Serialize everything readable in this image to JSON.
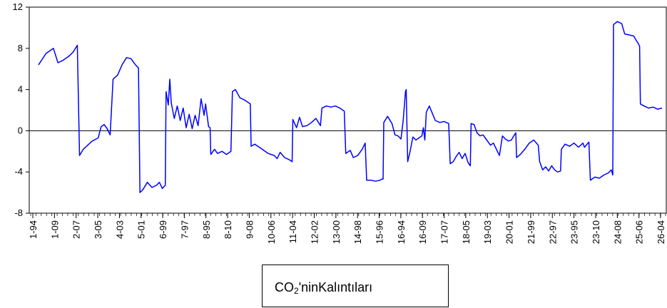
{
  "chart_data": {
    "type": "line",
    "ylim": [
      -8,
      12
    ],
    "yticks": [
      "12",
      "8",
      "4",
      "0",
      "-4",
      "-8"
    ],
    "ytick_values": [
      12,
      8,
      4,
      0,
      -4,
      -8
    ],
    "xticks": [
      "1-94",
      "1-09",
      "2-07",
      "3-05",
      "4-03",
      "5-01",
      "6-99",
      "7-97",
      "8-95",
      "8-10",
      "9-08",
      "10-06",
      "11-04",
      "12-02",
      "13-00",
      "14-98",
      "15-96",
      "16-94",
      "16-09",
      "17-07",
      "18-05",
      "19-03",
      "20-01",
      "21-99",
      "22-97",
      "23-95",
      "23-10",
      "24-08",
      "25-06",
      "26-04"
    ],
    "grid": false,
    "zero_line": true,
    "line_color": "#0000ff",
    "series": [
      {
        "name_prefix": "CO",
        "name_sub": "2",
        "name_suffix": "'ninKalıntıları",
        "points": [
          [
            0,
            6.4
          ],
          [
            0.5,
            7.5
          ],
          [
            1,
            8.0
          ],
          [
            1.3,
            6.6
          ],
          [
            1.6,
            6.8
          ],
          [
            2,
            7.2
          ],
          [
            2.3,
            7.6
          ],
          [
            2.6,
            8.3
          ],
          [
            2.75,
            -2.4
          ],
          [
            3,
            -1.8
          ],
          [
            3.3,
            -1.4
          ],
          [
            3.6,
            -1.0
          ],
          [
            4,
            -0.7
          ],
          [
            4.2,
            0.4
          ],
          [
            4.4,
            0.6
          ],
          [
            4.6,
            0.2
          ],
          [
            4.8,
            -0.4
          ],
          [
            5,
            5.0
          ],
          [
            5.3,
            5.4
          ],
          [
            5.6,
            6.4
          ],
          [
            5.9,
            7.1
          ],
          [
            6.2,
            7.0
          ],
          [
            6.5,
            6.4
          ],
          [
            6.7,
            6.1
          ],
          [
            6.8,
            -6.0
          ],
          [
            7.0,
            -5.7
          ],
          [
            7.3,
            -5.0
          ],
          [
            7.6,
            -5.5
          ],
          [
            7.9,
            -5.3
          ],
          [
            8.1,
            -5.0
          ],
          [
            8.3,
            -5.6
          ],
          [
            8.5,
            -5.3
          ],
          [
            8.55,
            3.8
          ],
          [
            8.7,
            2.5
          ],
          [
            8.8,
            5.0
          ],
          [
            8.9,
            2.7
          ],
          [
            9.1,
            1.2
          ],
          [
            9.3,
            2.4
          ],
          [
            9.5,
            1.0
          ],
          [
            9.7,
            2.2
          ],
          [
            9.9,
            0.3
          ],
          [
            10.1,
            1.6
          ],
          [
            10.3,
            0.2
          ],
          [
            10.5,
            1.5
          ],
          [
            10.7,
            0.5
          ],
          [
            10.9,
            3.1
          ],
          [
            11.1,
            1.5
          ],
          [
            11.2,
            2.6
          ],
          [
            11.4,
            0.4
          ],
          [
            11.5,
            0.3
          ],
          [
            11.55,
            -2.3
          ],
          [
            11.8,
            -1.8
          ],
          [
            12,
            -2.2
          ],
          [
            12.3,
            -2.0
          ],
          [
            12.6,
            -2.3
          ],
          [
            12.9,
            -2.0
          ],
          [
            13.0,
            3.8
          ],
          [
            13.2,
            4.0
          ],
          [
            13.5,
            3.2
          ],
          [
            13.8,
            3.0
          ],
          [
            14.0,
            2.8
          ],
          [
            14.2,
            2.6
          ],
          [
            14.25,
            -1.5
          ],
          [
            14.5,
            -1.3
          ],
          [
            14.8,
            -1.6
          ],
          [
            15.0,
            -1.8
          ],
          [
            15.4,
            -2.2
          ],
          [
            15.8,
            -2.4
          ],
          [
            16.0,
            -2.7
          ],
          [
            16.2,
            -2.1
          ],
          [
            16.5,
            -2.6
          ],
          [
            16.8,
            -2.8
          ],
          [
            17.0,
            -3.0
          ],
          [
            17.05,
            1.1
          ],
          [
            17.3,
            0.3
          ],
          [
            17.5,
            1.3
          ],
          [
            17.7,
            0.4
          ],
          [
            18.0,
            0.5
          ],
          [
            18.3,
            0.8
          ],
          [
            18.6,
            1.2
          ],
          [
            18.9,
            0.5
          ],
          [
            19.0,
            2.2
          ],
          [
            19.3,
            2.4
          ],
          [
            19.6,
            2.3
          ],
          [
            19.9,
            2.4
          ],
          [
            20.2,
            2.2
          ],
          [
            20.5,
            1.9
          ],
          [
            20.6,
            -2.2
          ],
          [
            20.9,
            -1.9
          ],
          [
            21.1,
            -2.6
          ],
          [
            21.4,
            -2.4
          ],
          [
            21.7,
            -1.8
          ],
          [
            21.9,
            -1.2
          ],
          [
            22.0,
            -4.8
          ],
          [
            22.3,
            -4.8
          ],
          [
            22.6,
            -4.9
          ],
          [
            22.9,
            -4.8
          ],
          [
            23.0,
            -4.7
          ],
          [
            23.1,
            -4.7
          ],
          [
            23.15,
            0.8
          ],
          [
            23.4,
            1.4
          ],
          [
            23.7,
            0.7
          ],
          [
            23.9,
            -0.4
          ],
          [
            24.1,
            -0.5
          ],
          [
            24.3,
            -0.8
          ],
          [
            24.45,
            1.0
          ],
          [
            24.6,
            3.8
          ],
          [
            24.65,
            4.0
          ],
          [
            24.75,
            -3.0
          ],
          [
            24.9,
            -2.1
          ],
          [
            25.1,
            -0.6
          ],
          [
            25.3,
            -0.9
          ],
          [
            25.5,
            -0.7
          ],
          [
            25.7,
            -0.5
          ],
          [
            25.8,
            0.3
          ],
          [
            25.9,
            -0.9
          ],
          [
            26.0,
            1.8
          ],
          [
            26.2,
            2.4
          ],
          [
            26.4,
            1.7
          ],
          [
            26.6,
            1.0
          ],
          [
            26.9,
            0.8
          ],
          [
            27.2,
            0.9
          ],
          [
            27.5,
            0.7
          ],
          [
            27.6,
            -3.2
          ],
          [
            27.8,
            -3.0
          ],
          [
            28.0,
            -2.5
          ],
          [
            28.2,
            -2.1
          ],
          [
            28.4,
            -2.7
          ],
          [
            28.6,
            -2.2
          ],
          [
            28.8,
            -3.1
          ],
          [
            28.95,
            -3.4
          ],
          [
            29.0,
            0.7
          ],
          [
            29.2,
            0.6
          ],
          [
            29.4,
            -0.2
          ],
          [
            29.6,
            -0.5
          ],
          [
            29.8,
            -0.4
          ],
          [
            30.0,
            -0.8
          ],
          [
            30.3,
            -1.4
          ],
          [
            30.5,
            -1.2
          ],
          [
            30.7,
            -1.8
          ],
          [
            30.9,
            -2.4
          ],
          [
            31.1,
            -0.5
          ],
          [
            31.3,
            -0.8
          ],
          [
            31.5,
            -1.0
          ],
          [
            31.7,
            -0.9
          ],
          [
            31.9,
            -0.4
          ],
          [
            32.0,
            -0.2
          ],
          [
            32.05,
            -2.6
          ],
          [
            32.3,
            -2.3
          ],
          [
            32.6,
            -1.8
          ],
          [
            32.9,
            -1.2
          ],
          [
            33.2,
            -0.9
          ],
          [
            33.5,
            -1.4
          ],
          [
            33.6,
            -3.0
          ],
          [
            33.8,
            -3.8
          ],
          [
            34.0,
            -3.5
          ],
          [
            34.2,
            -3.9
          ],
          [
            34.4,
            -3.4
          ],
          [
            34.6,
            -3.8
          ],
          [
            34.8,
            -4.0
          ],
          [
            35.0,
            -3.9
          ],
          [
            35.05,
            -1.8
          ],
          [
            35.3,
            -1.3
          ],
          [
            35.6,
            -1.5
          ],
          [
            35.9,
            -1.2
          ],
          [
            36.2,
            -1.6
          ],
          [
            36.5,
            -1.2
          ],
          [
            36.6,
            -1.6
          ],
          [
            36.9,
            -1.1
          ],
          [
            37.0,
            -4.8
          ],
          [
            37.3,
            -4.5
          ],
          [
            37.6,
            -4.6
          ],
          [
            37.9,
            -4.3
          ],
          [
            38.2,
            -4.1
          ],
          [
            38.4,
            -3.8
          ],
          [
            38.5,
            -4.3
          ],
          [
            38.55,
            10.3
          ],
          [
            38.8,
            10.6
          ],
          [
            39.1,
            10.4
          ],
          [
            39.3,
            9.4
          ],
          [
            39.6,
            9.3
          ],
          [
            39.9,
            9.2
          ],
          [
            40.1,
            8.7
          ],
          [
            40.2,
            8.5
          ],
          [
            40.3,
            8.2
          ],
          [
            40.35,
            2.6
          ],
          [
            40.6,
            2.4
          ],
          [
            40.9,
            2.2
          ],
          [
            41.2,
            2.3
          ],
          [
            41.5,
            2.1
          ],
          [
            41.8,
            2.2
          ]
        ]
      }
    ]
  }
}
